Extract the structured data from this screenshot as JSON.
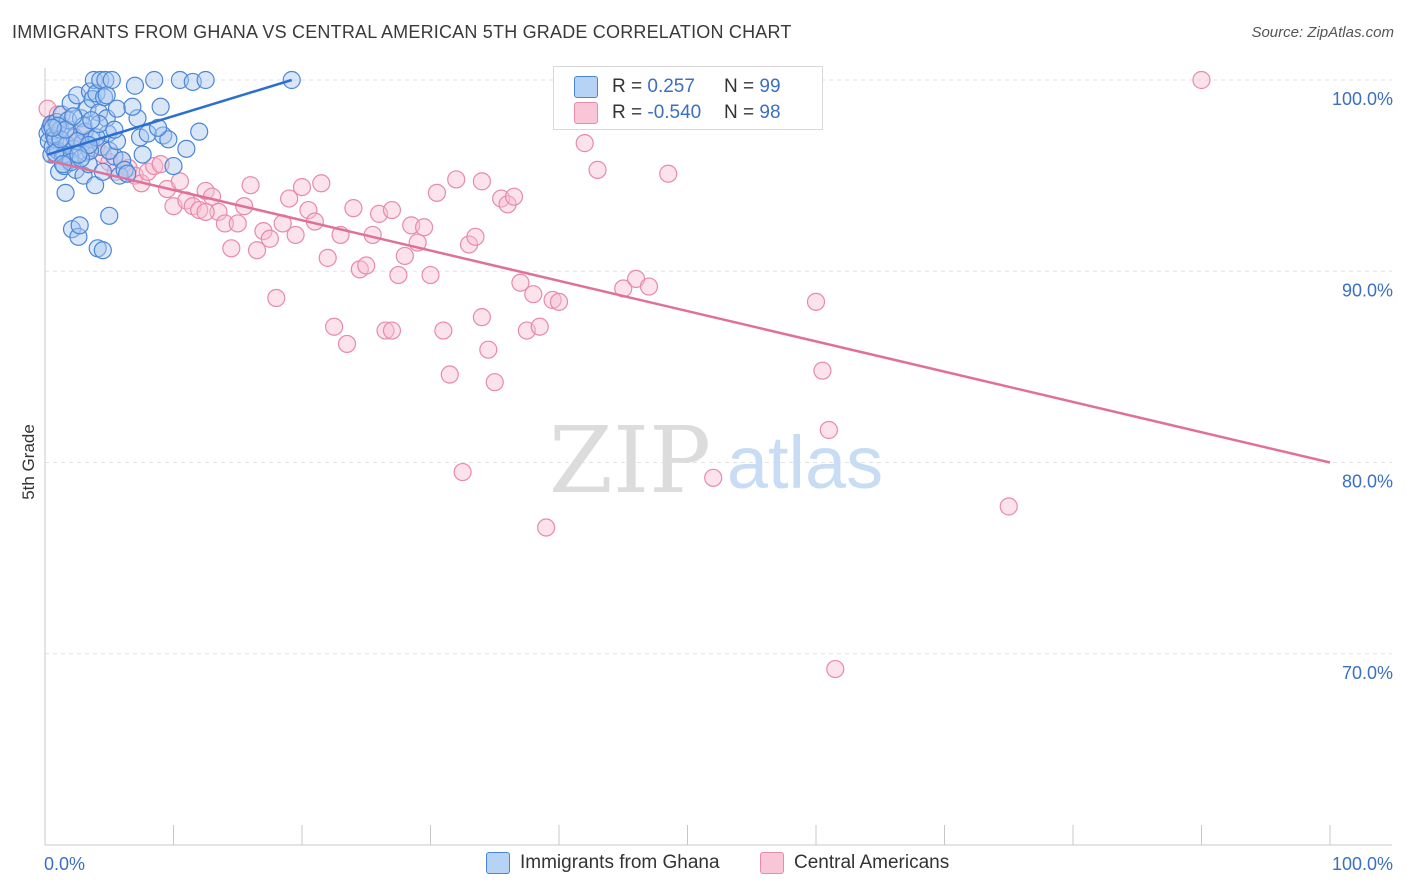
{
  "title": "IMMIGRANTS FROM GHANA VS CENTRAL AMERICAN 5TH GRADE CORRELATION CHART",
  "source": "Source: ZipAtlas.com",
  "watermark": {
    "zip": "ZIP",
    "atlas": "atlas"
  },
  "colors": {
    "blue_fill": "#a9c8f0",
    "blue_stroke": "#4a86d8",
    "blue_line": "#2b6fd0",
    "pink_fill": "#f7bfd2",
    "pink_stroke": "#e88aa9",
    "pink_line": "#e0709a",
    "axis_label": "#3a6fc4",
    "grid": "#e3e3e3"
  },
  "legend": {
    "series": [
      {
        "r_label": "R = ",
        "r_value": "0.257",
        "n_label": "N = ",
        "n_value": "99"
      },
      {
        "r_label": "R = ",
        "r_value": "-0.540",
        "n_label": "N = ",
        "n_value": "98"
      }
    ]
  },
  "bottom_legend": [
    "Immigrants from Ghana",
    "Central Americans"
  ],
  "chart_data": {
    "type": "scatter",
    "title": "IMMIGRANTS FROM GHANA VS CENTRAL AMERICAN 5TH GRADE CORRELATION CHART",
    "xlabel": "",
    "ylabel": "5th Grade",
    "xlim": [
      0,
      100
    ],
    "ylim": [
      60,
      100
    ],
    "x_tick_labels": [
      "0.0%",
      "100.0%"
    ],
    "y_ticks": [
      70,
      80,
      90,
      100
    ],
    "y_tick_labels": [
      "70.0%",
      "80.0%",
      "90.0%",
      "100.0%"
    ],
    "grid": true,
    "series": [
      {
        "name": "Immigrants from Ghana",
        "R": 0.257,
        "N": 99,
        "trend": {
          "x": [
            0.2,
            19.2
          ],
          "y": [
            96.1,
            100.0
          ]
        },
        "points": [
          [
            0.2,
            97.2
          ],
          [
            0.3,
            96.8
          ],
          [
            0.4,
            97.5
          ],
          [
            0.5,
            96.1
          ],
          [
            0.5,
            97.7
          ],
          [
            0.6,
            96.5
          ],
          [
            0.7,
            97.1
          ],
          [
            0.8,
            96.9
          ],
          [
            0.9,
            97.8
          ],
          [
            1.0,
            96.3
          ],
          [
            1.1,
            95.2
          ],
          [
            1.2,
            97.4
          ],
          [
            1.3,
            98.2
          ],
          [
            1.4,
            96.0
          ],
          [
            1.5,
            95.5
          ],
          [
            1.6,
            94.1
          ],
          [
            1.7,
            96.6
          ],
          [
            1.8,
            97.9
          ],
          [
            1.9,
            95.8
          ],
          [
            2.0,
            98.8
          ],
          [
            2.1,
            92.2
          ],
          [
            2.2,
            96.4
          ],
          [
            2.3,
            97.0
          ],
          [
            2.4,
            95.3
          ],
          [
            2.5,
            99.2
          ],
          [
            2.6,
            91.8
          ],
          [
            2.7,
            92.4
          ],
          [
            2.8,
            98.0
          ],
          [
            2.9,
            96.7
          ],
          [
            3.0,
            95.0
          ],
          [
            3.1,
            97.3
          ],
          [
            3.2,
            96.2
          ],
          [
            3.3,
            98.5
          ],
          [
            3.4,
            95.6
          ],
          [
            3.5,
            99.4
          ],
          [
            3.6,
            96.9
          ],
          [
            3.7,
            99.0
          ],
          [
            3.8,
            100.0
          ],
          [
            3.9,
            94.5
          ],
          [
            4.0,
            99.3
          ],
          [
            4.1,
            91.2
          ],
          [
            4.2,
            98.3
          ],
          [
            4.3,
            100.0
          ],
          [
            4.4,
            96.5
          ],
          [
            4.5,
            91.1
          ],
          [
            4.6,
            99.1
          ],
          [
            4.7,
            100.0
          ],
          [
            4.8,
            98.0
          ],
          [
            4.9,
            97.2
          ],
          [
            5.0,
            92.9
          ],
          [
            5.2,
            100.0
          ],
          [
            5.4,
            96.0
          ],
          [
            5.6,
            98.5
          ],
          [
            5.8,
            95.0
          ],
          [
            6.0,
            95.8
          ],
          [
            6.2,
            95.3
          ],
          [
            7.0,
            99.7
          ],
          [
            7.2,
            98.0
          ],
          [
            7.4,
            97.0
          ],
          [
            7.6,
            96.1
          ],
          [
            8.0,
            97.2
          ],
          [
            8.5,
            100.0
          ],
          [
            9.0,
            98.6
          ],
          [
            9.2,
            97.1
          ],
          [
            9.6,
            96.9
          ],
          [
            10.0,
            95.5
          ],
          [
            10.5,
            100.0
          ],
          [
            11.0,
            96.4
          ],
          [
            11.5,
            99.9
          ],
          [
            12.0,
            97.3
          ],
          [
            12.5,
            100.0
          ],
          [
            1.0,
            97.6
          ],
          [
            1.5,
            96.1
          ],
          [
            2.0,
            95.7
          ],
          [
            2.5,
            96.8
          ],
          [
            3.0,
            97.6
          ],
          [
            3.5,
            96.3
          ],
          [
            4.0,
            97.0
          ],
          [
            4.5,
            95.2
          ],
          [
            0.8,
            96.2
          ],
          [
            1.2,
            96.9
          ],
          [
            1.6,
            97.4
          ],
          [
            2.2,
            98.1
          ],
          [
            2.8,
            95.9
          ],
          [
            3.4,
            96.6
          ],
          [
            4.2,
            97.7
          ],
          [
            5.0,
            96.3
          ],
          [
            5.6,
            96.8
          ],
          [
            6.4,
            95.1
          ],
          [
            0.6,
            97.5
          ],
          [
            1.4,
            95.6
          ],
          [
            2.6,
            96.1
          ],
          [
            3.6,
            97.9
          ],
          [
            4.8,
            99.2
          ],
          [
            5.4,
            97.4
          ],
          [
            6.8,
            98.6
          ],
          [
            8.8,
            97.5
          ],
          [
            19.2,
            100.0
          ]
        ]
      },
      {
        "name": "Central Americans",
        "R": -0.54,
        "N": 98,
        "trend": {
          "x": [
            0.2,
            100
          ],
          "y": [
            95.8,
            80.0
          ]
        },
        "points": [
          [
            0.2,
            98.5
          ],
          [
            0.5,
            97.6
          ],
          [
            1.0,
            98.2
          ],
          [
            1.5,
            96.7
          ],
          [
            2.0,
            97.4
          ],
          [
            2.5,
            96.8
          ],
          [
            3.0,
            97.2
          ],
          [
            3.5,
            96.3
          ],
          [
            4.0,
            96.5
          ],
          [
            4.5,
            96.1
          ],
          [
            5.0,
            95.7
          ],
          [
            5.5,
            95.2
          ],
          [
            6.0,
            95.8
          ],
          [
            6.5,
            95.4
          ],
          [
            7.0,
            95.0
          ],
          [
            7.5,
            94.6
          ],
          [
            8.0,
            95.2
          ],
          [
            8.5,
            95.5
          ],
          [
            9.0,
            95.6
          ],
          [
            9.5,
            94.3
          ],
          [
            10.0,
            93.4
          ],
          [
            10.5,
            94.7
          ],
          [
            11.0,
            93.7
          ],
          [
            11.5,
            93.4
          ],
          [
            12.0,
            93.2
          ],
          [
            12.5,
            94.2
          ],
          [
            13.0,
            93.9
          ],
          [
            13.5,
            93.1
          ],
          [
            14.0,
            92.5
          ],
          [
            14.5,
            91.2
          ],
          [
            15.0,
            92.5
          ],
          [
            15.5,
            93.4
          ],
          [
            16.0,
            94.5
          ],
          [
            16.5,
            91.1
          ],
          [
            17.0,
            92.1
          ],
          [
            17.5,
            91.7
          ],
          [
            18.0,
            88.6
          ],
          [
            18.5,
            92.5
          ],
          [
            19.0,
            93.8
          ],
          [
            19.5,
            91.9
          ],
          [
            20.0,
            94.4
          ],
          [
            20.5,
            93.2
          ],
          [
            21.0,
            92.6
          ],
          [
            21.5,
            94.6
          ],
          [
            22.0,
            90.7
          ],
          [
            22.5,
            87.1
          ],
          [
            23.0,
            91.9
          ],
          [
            23.5,
            86.2
          ],
          [
            24.0,
            93.3
          ],
          [
            24.5,
            90.1
          ],
          [
            25.0,
            90.3
          ],
          [
            25.5,
            91.9
          ],
          [
            26.0,
            93.0
          ],
          [
            26.5,
            86.9
          ],
          [
            27.0,
            93.2
          ],
          [
            27.5,
            89.8
          ],
          [
            28.0,
            90.8
          ],
          [
            28.5,
            92.4
          ],
          [
            29.0,
            91.5
          ],
          [
            29.5,
            92.3
          ],
          [
            30.0,
            89.8
          ],
          [
            30.5,
            94.1
          ],
          [
            31.0,
            86.9
          ],
          [
            31.5,
            84.6
          ],
          [
            32.0,
            94.8
          ],
          [
            32.5,
            79.5
          ],
          [
            33.0,
            91.4
          ],
          [
            33.5,
            91.8
          ],
          [
            34.0,
            87.6
          ],
          [
            34.5,
            85.9
          ],
          [
            35.0,
            84.2
          ],
          [
            35.5,
            93.8
          ],
          [
            36.0,
            93.5
          ],
          [
            36.5,
            93.9
          ],
          [
            37.0,
            89.4
          ],
          [
            37.5,
            86.9
          ],
          [
            38.0,
            88.8
          ],
          [
            38.5,
            87.1
          ],
          [
            39.0,
            76.6
          ],
          [
            39.5,
            88.5
          ],
          [
            40.0,
            88.4
          ],
          [
            42.0,
            96.7
          ],
          [
            43.0,
            95.3
          ],
          [
            45.0,
            89.1
          ],
          [
            46.0,
            89.6
          ],
          [
            47.0,
            89.2
          ],
          [
            48.5,
            95.1
          ],
          [
            52.0,
            79.2
          ],
          [
            60.0,
            88.4
          ],
          [
            60.5,
            84.8
          ],
          [
            61.0,
            81.7
          ],
          [
            61.5,
            69.2
          ],
          [
            75.0,
            77.7
          ],
          [
            90.0,
            100.0
          ],
          [
            49.0,
            100.0
          ],
          [
            34.0,
            94.7
          ],
          [
            27.0,
            86.9
          ],
          [
            12.5,
            93.1
          ]
        ]
      }
    ]
  }
}
